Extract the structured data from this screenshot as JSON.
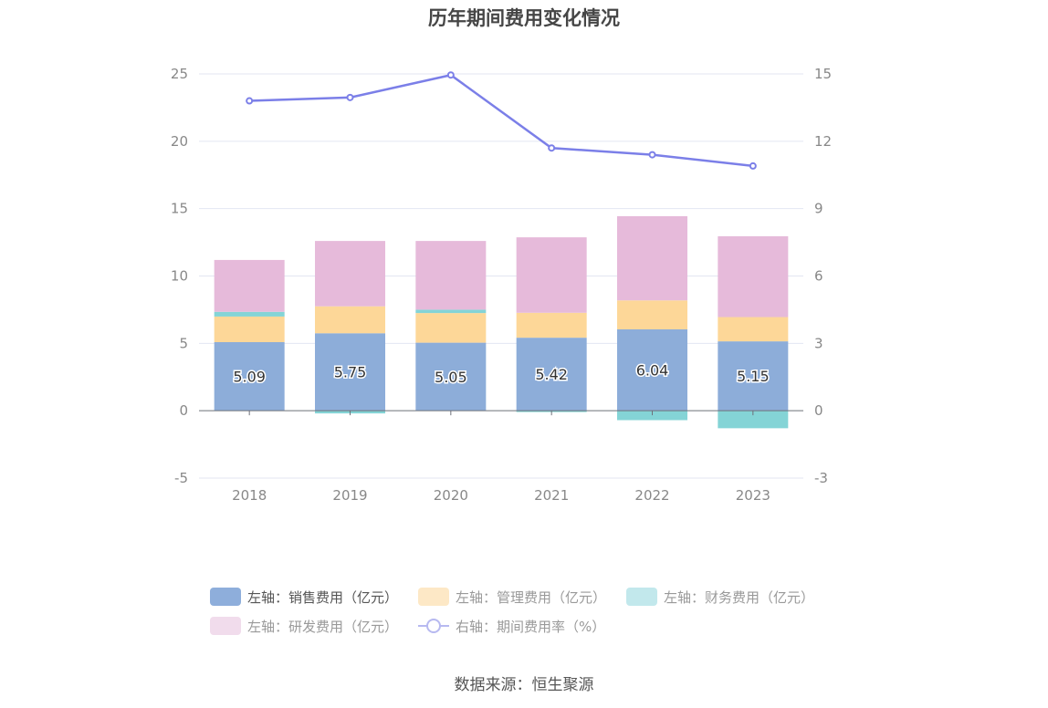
{
  "title": "历年期间费用变化情况",
  "source": "数据来源：恒生聚源",
  "legend": [
    {
      "label": "左轴：销售费用（亿元）",
      "color": "#8eaedb",
      "kind": "box",
      "active": true
    },
    {
      "label": "左轴：管理费用（亿元）",
      "color": "#fde8c6",
      "kind": "box",
      "active": false
    },
    {
      "label": "左轴：财务费用（亿元）",
      "color": "#c2e8ec",
      "kind": "box",
      "active": false
    },
    {
      "label": "左轴：研发费用（亿元）",
      "color": "#f1dcec",
      "kind": "box",
      "active": false
    },
    {
      "label": "右轴：期间费用率（%）",
      "color": "#b7b9f0",
      "kind": "line",
      "active": false
    }
  ],
  "chart_data": {
    "type": "bar",
    "categories": [
      "2018",
      "2019",
      "2020",
      "2021",
      "2022",
      "2023"
    ],
    "y_left": {
      "ylim": [
        -5,
        25
      ],
      "ticks": [
        "-5",
        "0",
        "5",
        "10",
        "15",
        "20",
        "25"
      ]
    },
    "y_right": {
      "ylim": [
        -3,
        15
      ],
      "ticks": [
        "-3",
        "0",
        "3",
        "6",
        "9",
        "12",
        "15"
      ]
    },
    "series": [
      {
        "name": "左轴：销售费用（亿元）",
        "axis": "left",
        "color": "#8dadd9",
        "values": [
          5.09,
          5.75,
          5.05,
          5.42,
          6.04,
          5.15
        ],
        "labels": [
          "5.09",
          "5.75",
          "5.05",
          "5.42",
          "6.04",
          "5.15"
        ]
      },
      {
        "name": "左轴：管理费用（亿元）",
        "axis": "left",
        "color": "#fdd798",
        "values": [
          1.9,
          2.0,
          2.2,
          1.85,
          2.15,
          1.8
        ]
      },
      {
        "name": "左轴：财务费用（亿元）",
        "axis": "left",
        "color": "#84d4d6",
        "values": [
          0.35,
          -0.2,
          0.25,
          -0.1,
          -0.7,
          -1.3
        ]
      },
      {
        "name": "左轴：研发费用（亿元）",
        "axis": "left",
        "color": "#e6bada",
        "values": [
          3.85,
          4.85,
          5.1,
          5.6,
          6.25,
          6.0
        ]
      },
      {
        "name": "右轴：期间费用率（%）",
        "axis": "right",
        "type": "line",
        "color": "#7b7fe8",
        "values": [
          13.8,
          13.95,
          14.95,
          11.7,
          11.4,
          10.9
        ]
      }
    ]
  }
}
